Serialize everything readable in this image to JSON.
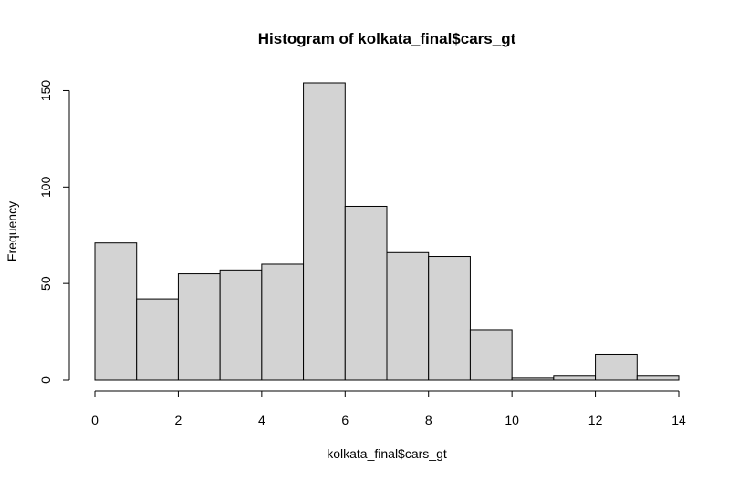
{
  "chart_data": {
    "type": "bar",
    "title": "Histogram of kolkata_final$cars_gt",
    "xlabel": "kolkata_final$cars_gt",
    "ylabel": "Frequency",
    "bins": [
      {
        "start": 0,
        "end": 1,
        "count": 71
      },
      {
        "start": 1,
        "end": 2,
        "count": 42
      },
      {
        "start": 2,
        "end": 3,
        "count": 55
      },
      {
        "start": 3,
        "end": 4,
        "count": 57
      },
      {
        "start": 4,
        "end": 5,
        "count": 60
      },
      {
        "start": 5,
        "end": 6,
        "count": 154
      },
      {
        "start": 6,
        "end": 7,
        "count": 90
      },
      {
        "start": 7,
        "end": 8,
        "count": 66
      },
      {
        "start": 8,
        "end": 9,
        "count": 64
      },
      {
        "start": 9,
        "end": 10,
        "count": 26
      },
      {
        "start": 10,
        "end": 11,
        "count": 1
      },
      {
        "start": 11,
        "end": 12,
        "count": 2
      },
      {
        "start": 12,
        "end": 13,
        "count": 13
      },
      {
        "start": 13,
        "end": 14,
        "count": 2
      }
    ],
    "xlim": [
      0,
      14
    ],
    "ylim": [
      0,
      154
    ],
    "x_ticks": [
      0,
      2,
      4,
      6,
      8,
      10,
      12,
      14
    ],
    "y_ticks": [
      0,
      50,
      100,
      150
    ],
    "grid": false,
    "legend": "none",
    "colors": {
      "bar_fill": "#d3d3d3",
      "bar_stroke": "#000000"
    }
  }
}
